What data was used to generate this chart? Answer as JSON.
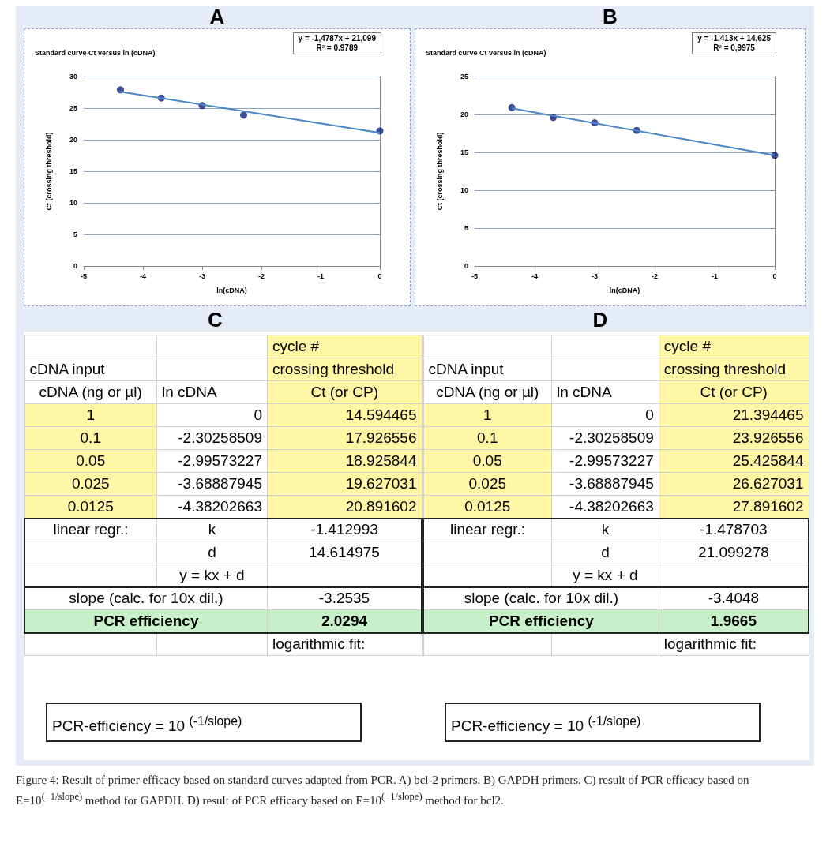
{
  "chart_data": [
    {
      "type": "scatter",
      "title": "Standard curve Ct versus ln (cDNA)",
      "xlabel": "ln(cDNA)",
      "ylabel": "Ct (crossing threshold)",
      "annotations": [
        "A",
        "y = -1,4787x + 21,099",
        "R² = 0.9789",
        "Figure 4: Result of primer efficacy based on standard curves adapted from PCR. A) bcl-2 primers. B) GAPDH primers. C) result of PCR efficacy based on E=10$^{(−1/slope)}$ method for GAPDH. D) result of PCR efficacy based on E=10$^{(−1/slope)}$ method for bcl2."
      ],
      "series": [
        {
          "type": "scatter",
          "color": "#0b1f7a",
          "marker": "circle",
          "x": [
            -4.38,
            -3.69,
            -3.0,
            -2.3,
            0
          ],
          "values": [
            27.9,
            26.6,
            25.4,
            23.9,
            21.4
          ]
        },
        {
          "type": "line",
          "color": "#4a86c8",
          "marker": "none",
          "x": [
            -4.38,
            0
          ],
          "values": [
            27.6,
            21.1
          ]
        }
      ],
      "xlim": [
        -5,
        0
      ],
      "xticks": [
        -5,
        -4,
        -3,
        -2,
        -1,
        0
      ],
      "ylim": [
        0,
        30
      ],
      "yticks": [
        0,
        5,
        10,
        15,
        20,
        25,
        30
      ],
      "grid": "y"
    },
    {
      "type": "scatter",
      "title": "Standard curve Ct versus ln (cDNA)",
      "xlabel": "ln(cDNA)",
      "ylabel": "Ct (crossing threshold)",
      "annotations": [
        "B",
        "y = -1,413x + 14,625",
        "R² = 0,9975"
      ],
      "series": [
        {
          "type": "scatter",
          "color": "#0b1f7a",
          "marker": "circle",
          "x": [
            -4.38,
            -3.69,
            -3.0,
            -2.3,
            0
          ],
          "values": [
            20.9,
            19.6,
            18.9,
            17.9,
            14.6
          ]
        },
        {
          "type": "line",
          "color": "#4a86c8",
          "marker": "none",
          "x": [
            -4.38,
            0
          ],
          "values": [
            20.8,
            14.6
          ]
        }
      ],
      "xlim": [
        -5,
        0
      ],
      "xticks": [
        -5,
        -4,
        -3,
        -2,
        -1,
        0
      ],
      "ylim": [
        0,
        25
      ],
      "yticks": [
        0,
        5,
        10,
        15,
        20,
        25
      ],
      "grid": "y"
    },
    {
      "type": "other",
      "title": "C",
      "annotations": [
        "cycle #",
        "cDNA input",
        "crossing threshold",
        "cDNA (ng or µl)",
        "ln cDNA",
        "Ct (or CP)",
        "1",
        "0",
        "14.594465",
        "0.1",
        "-2.30258509",
        "17.926556",
        "0.05",
        "-2.99573227",
        "18.925844",
        "0.025",
        "-3.68887945",
        "19.627031",
        "0.0125",
        "-4.38202663",
        "20.891602",
        "linear regr.:",
        "k",
        "-1.412993",
        "d",
        "14.614975",
        "y = kx + d",
        "slope (calc. for 10x dil.)",
        "-3.2535",
        "PCR efficiency",
        "2.0294",
        "logarithmic fit:",
        "PCR-efficiency = 10 $^{(-1/slope)}$"
      ]
    },
    {
      "type": "other",
      "title": "D",
      "annotations": [
        "cycle #",
        "cDNA input",
        "crossing threshold",
        "cDNA (ng or µl)",
        "ln cDNA",
        "Ct (or CP)",
        "1",
        "0",
        "21.394465",
        "0.1",
        "-2.30258509",
        "23.926556",
        "0.05",
        "-2.99573227",
        "25.425844",
        "0.025",
        "-3.68887945",
        "26.627031",
        "0.0125",
        "-4.38202663",
        "27.891602",
        "linear regr.:",
        "k",
        "-1.478703",
        "d",
        "21.099278",
        "y = kx + d",
        "slope (calc. for 10x dil.)",
        "-3.4048",
        "PCR efficiency",
        "1.9665",
        "logarithmic fit:",
        "PCR-efficiency = 10 $^{(-1/slope)}$"
      ]
    }
  ]
}
